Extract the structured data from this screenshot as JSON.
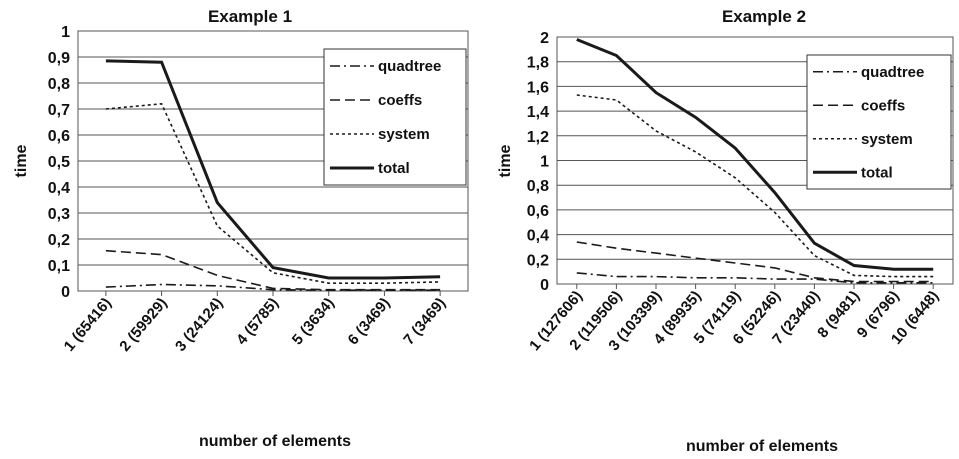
{
  "chart_data": [
    {
      "type": "line",
      "title": "Example 1",
      "xlabel": "number of elements",
      "ylabel": "time",
      "ylim": [
        0,
        1
      ],
      "yticks": [
        "0",
        "0,1",
        "0,2",
        "0,3",
        "0,4",
        "0,5",
        "0,6",
        "0,7",
        "0,8",
        "0,9",
        "1"
      ],
      "categories": [
        "1 (65416)",
        "2 (59929)",
        "3 (24124)",
        "4 (5785)",
        "5 (3634)",
        "6 (3469)",
        "7 (3469)"
      ],
      "grid": true,
      "legend_position": "top-right",
      "series": [
        {
          "name": "quadtree",
          "style": "dashdot",
          "values": [
            0.015,
            0.025,
            0.02,
            0.005,
            0.003,
            0.003,
            0.003
          ]
        },
        {
          "name": "coeffs",
          "style": "dashed",
          "values": [
            0.155,
            0.14,
            0.06,
            0.01,
            0.005,
            0.005,
            0.005
          ]
        },
        {
          "name": "system",
          "style": "dotted",
          "values": [
            0.7,
            0.72,
            0.25,
            0.07,
            0.03,
            0.03,
            0.035
          ]
        },
        {
          "name": "total",
          "style": "solid",
          "values": [
            0.885,
            0.88,
            0.34,
            0.09,
            0.05,
            0.05,
            0.055
          ]
        }
      ]
    },
    {
      "type": "line",
      "title": "Example 2",
      "xlabel": "number of elements",
      "ylabel": "time",
      "ylim": [
        0,
        2
      ],
      "yticks": [
        "0",
        "0,2",
        "0,4",
        "0,6",
        "0,8",
        "1",
        "1,2",
        "1,4",
        "1,6",
        "1,8",
        "2"
      ],
      "categories": [
        "1 (127606)",
        "2 (119506)",
        "3 (103399)",
        "4 (89935)",
        "5 (74119)",
        "6 (52246)",
        "7 (23440)",
        "8 (9481)",
        "9 (6796)",
        "10 (6448)"
      ],
      "grid": true,
      "legend_position": "top-right",
      "series": [
        {
          "name": "quadtree",
          "style": "dashdot",
          "values": [
            0.09,
            0.06,
            0.06,
            0.05,
            0.05,
            0.04,
            0.04,
            0.01,
            0.01,
            0.01
          ]
        },
        {
          "name": "coeffs",
          "style": "dashed",
          "values": [
            0.34,
            0.29,
            0.25,
            0.21,
            0.17,
            0.13,
            0.05,
            0.02,
            0.02,
            0.02
          ]
        },
        {
          "name": "system",
          "style": "dotted",
          "values": [
            1.53,
            1.49,
            1.24,
            1.07,
            0.86,
            0.58,
            0.23,
            0.07,
            0.06,
            0.06
          ]
        },
        {
          "name": "total",
          "style": "solid",
          "values": [
            1.98,
            1.85,
            1.55,
            1.35,
            1.1,
            0.74,
            0.33,
            0.15,
            0.12,
            0.12
          ]
        }
      ]
    }
  ]
}
